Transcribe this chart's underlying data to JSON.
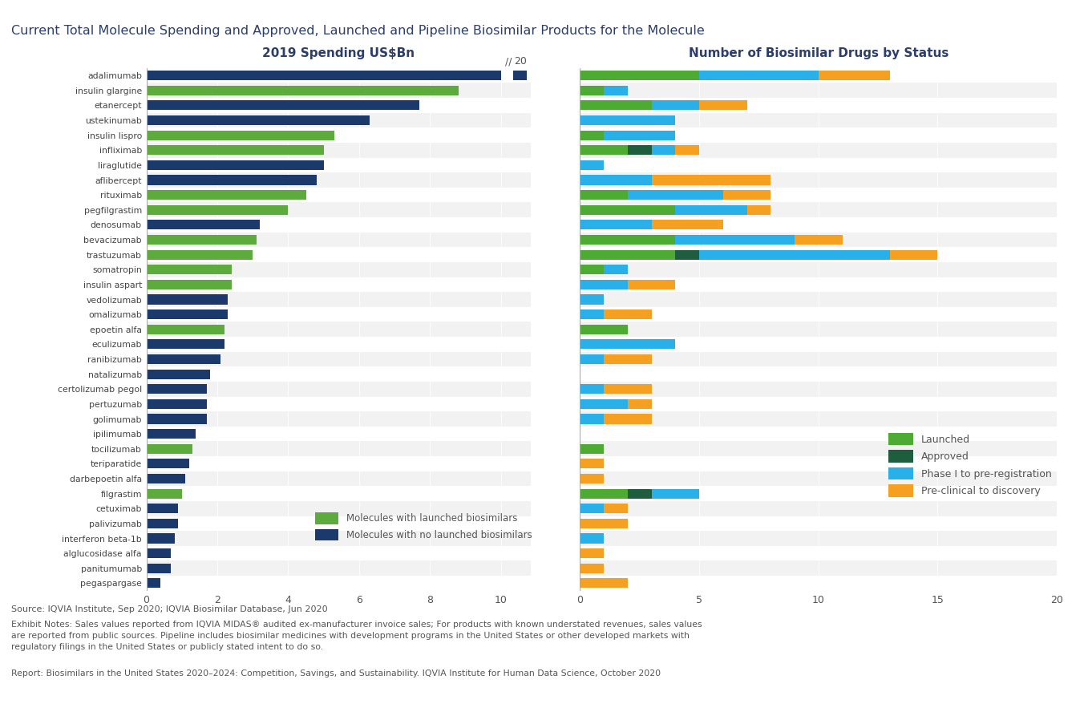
{
  "molecules": [
    "adalimumab",
    "insulin glargine",
    "etanercept",
    "ustekinumab",
    "insulin lispro",
    "infliximab",
    "liraglutide",
    "aflibercept",
    "rituximab",
    "pegfilgrastim",
    "denosumab",
    "bevacizumab",
    "trastuzumab",
    "somatropin",
    "insulin aspart",
    "vedolizumab",
    "omalizumab",
    "epoetin alfa",
    "eculizumab",
    "ranibizumab",
    "natalizumab",
    "certolizumab pegol",
    "pertuzumab",
    "golimumab",
    "ipilimumab",
    "tocilizumab",
    "teriparatide",
    "darbepoetin alfa",
    "filgrastim",
    "cetuximab",
    "palivizumab",
    "interferon beta-1b",
    "alglucosidase alfa",
    "panitumumab",
    "pegaspargase"
  ],
  "spending": [
    19.8,
    8.8,
    7.7,
    6.3,
    5.3,
    5.0,
    5.0,
    4.8,
    4.5,
    4.0,
    3.2,
    3.1,
    3.0,
    2.4,
    2.4,
    2.3,
    2.3,
    2.2,
    2.2,
    2.1,
    1.8,
    1.7,
    1.7,
    1.7,
    1.4,
    1.3,
    1.2,
    1.1,
    1.0,
    0.9,
    0.9,
    0.8,
    0.7,
    0.7,
    0.4
  ],
  "has_launched": [
    false,
    true,
    false,
    false,
    true,
    true,
    false,
    false,
    true,
    true,
    false,
    true,
    true,
    true,
    true,
    false,
    false,
    true,
    false,
    false,
    false,
    false,
    false,
    false,
    false,
    true,
    false,
    false,
    true,
    false,
    false,
    false,
    false,
    false,
    false
  ],
  "biosimilar_launched": [
    5,
    1,
    3,
    0,
    1,
    2,
    0,
    0,
    2,
    4,
    0,
    4,
    4,
    1,
    0,
    0,
    0,
    2,
    0,
    0,
    0,
    0,
    0,
    0,
    0,
    1,
    0,
    0,
    2,
    0,
    0,
    0,
    0,
    0,
    0
  ],
  "biosimilar_approved": [
    0,
    0,
    0,
    0,
    0,
    1,
    0,
    0,
    0,
    0,
    0,
    0,
    1,
    0,
    0,
    0,
    0,
    0,
    0,
    0,
    0,
    0,
    0,
    0,
    0,
    0,
    0,
    0,
    1,
    0,
    0,
    0,
    0,
    0,
    0
  ],
  "biosimilar_phase1_pre": [
    5,
    1,
    2,
    4,
    3,
    1,
    1,
    3,
    4,
    3,
    3,
    5,
    8,
    1,
    2,
    1,
    1,
    0,
    4,
    1,
    0,
    1,
    2,
    1,
    0,
    0,
    0,
    0,
    2,
    1,
    0,
    1,
    0,
    0,
    0
  ],
  "biosimilar_preclinical": [
    3,
    0,
    2,
    0,
    0,
    1,
    0,
    5,
    2,
    1,
    3,
    2,
    2,
    0,
    2,
    0,
    2,
    0,
    0,
    2,
    0,
    2,
    1,
    2,
    0,
    0,
    1,
    1,
    0,
    1,
    2,
    0,
    1,
    1,
    2
  ],
  "color_launched": "#4dab34",
  "color_approved": "#1e5e3e",
  "color_phase1_pre": "#2ab0e8",
  "color_preclinical": "#f5a020",
  "color_bar_green": "#5dab3c",
  "color_bar_navy": "#1b3a6b",
  "title": "Current Total Molecule Spending and Approved, Launched and Pipeline Biosimilar Products for the Molecule",
  "left_title": "2019 Spending US$Bn",
  "right_title": "Number of Biosimilar Drugs by Status",
  "source_text": "Source: IQVIA Institute, Sep 2020; IQVIA Biosimilar Database, Jun 2020",
  "notes_text": "Exhibit Notes: Sales values reported from IQVIA MIDAS® audited ex-manufacturer invoice sales; For products with known understated revenues, sales values\nare reported from public sources. Pipeline includes biosimilar medicines with development programs in the United States or other developed markets with\nregulatory filings in the United States or publicly stated intent to do so.",
  "report_text": "Report: Biosimilars in the United States 2020–2024: Competition, Savings, and Sustainability. IQVIA Institute for Human Data Science, October 2020",
  "bg_light": "#f2f2f2",
  "bg_dark": "#e4e4e4"
}
